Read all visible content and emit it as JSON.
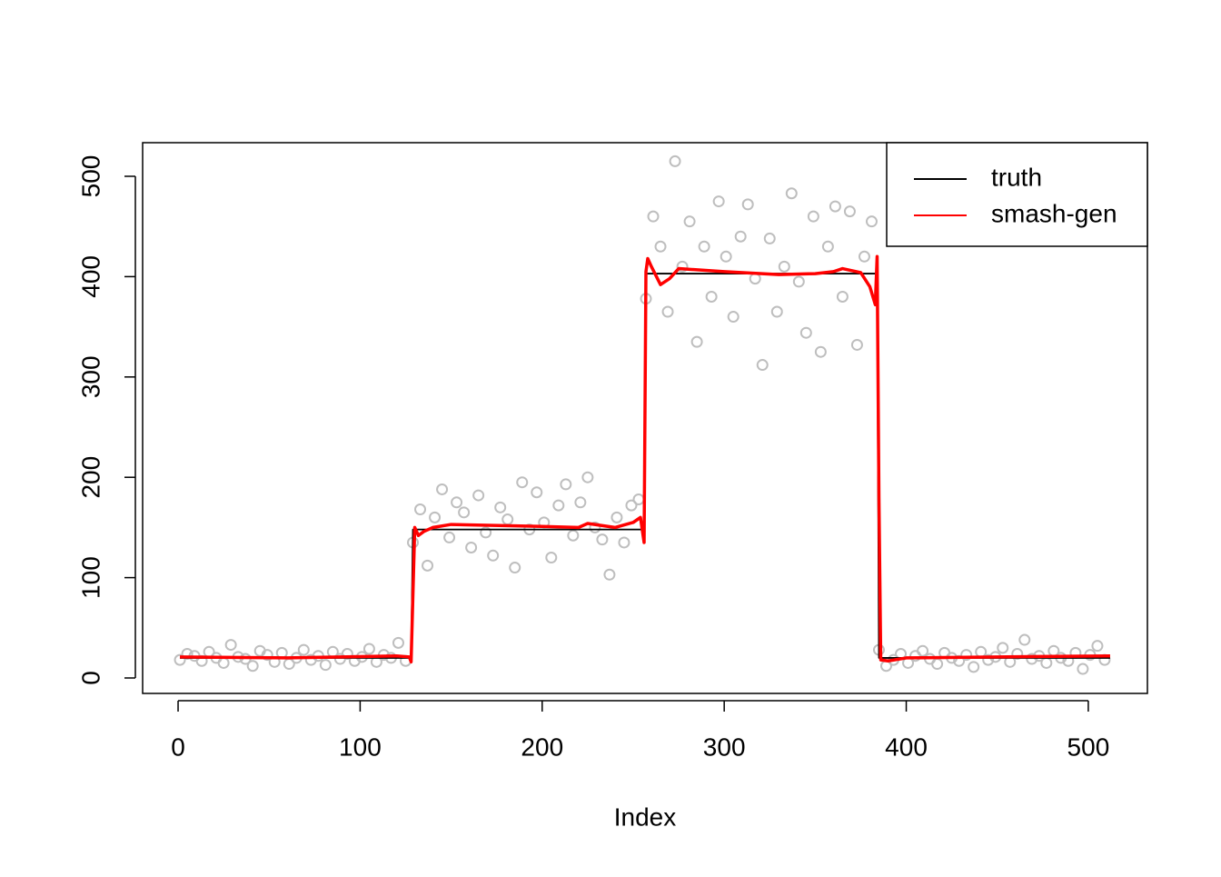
{
  "chart_data": {
    "type": "scatter",
    "xlabel": "Index",
    "xlim": [
      -19.48,
      532.48
    ],
    "ylim": [
      -15.4,
      533.5
    ],
    "xticks": [
      0,
      100,
      200,
      300,
      400,
      500
    ],
    "yticks": [
      0,
      100,
      200,
      300,
      400,
      500
    ],
    "legend": "topright",
    "points": {
      "color": "#bebebe",
      "x": [
        1,
        5,
        9,
        13,
        17,
        21,
        25,
        29,
        33,
        37,
        41,
        45,
        49,
        53,
        57,
        61,
        65,
        69,
        73,
        77,
        81,
        85,
        89,
        93,
        97,
        101,
        105,
        109,
        113,
        117,
        121,
        125,
        129,
        133,
        137,
        141,
        145,
        149,
        153,
        157,
        161,
        165,
        169,
        173,
        177,
        181,
        185,
        189,
        193,
        197,
        201,
        205,
        209,
        213,
        217,
        221,
        225,
        229,
        233,
        237,
        241,
        245,
        249,
        253,
        257,
        261,
        265,
        269,
        273,
        277,
        281,
        285,
        289,
        293,
        297,
        301,
        305,
        309,
        313,
        317,
        321,
        325,
        329,
        333,
        337,
        341,
        345,
        349,
        353,
        357,
        361,
        365,
        369,
        373,
        377,
        381,
        385,
        389,
        393,
        397,
        401,
        405,
        409,
        413,
        417,
        421,
        425,
        429,
        433,
        437,
        441,
        445,
        449,
        453,
        457,
        461,
        465,
        469,
        473,
        477,
        481,
        485,
        489,
        493,
        497,
        501,
        505,
        509
      ],
      "values": [
        18,
        24,
        22,
        17,
        26,
        20,
        15,
        33,
        21,
        19,
        12,
        27,
        23,
        16,
        25,
        14,
        20,
        28,
        18,
        22,
        13,
        26,
        19,
        24,
        17,
        21,
        29,
        16,
        23,
        20,
        35,
        17,
        135,
        168,
        112,
        160,
        188,
        140,
        175,
        165,
        130,
        182,
        145,
        122,
        170,
        158,
        110,
        195,
        148,
        185,
        155,
        120,
        172,
        193,
        142,
        175,
        200,
        150,
        138,
        103,
        160,
        135,
        172,
        178,
        378,
        460,
        430,
        365,
        515,
        410,
        455,
        335,
        430,
        380,
        475,
        420,
        360,
        440,
        472,
        398,
        312,
        438,
        365,
        410,
        483,
        395,
        344,
        460,
        325,
        430,
        470,
        380,
        465,
        332,
        420,
        455,
        28,
        12,
        18,
        24,
        15,
        22,
        27,
        19,
        14,
        25,
        20,
        17,
        23,
        11,
        26,
        18,
        21,
        30,
        16,
        24,
        38,
        19,
        22,
        15,
        27,
        20,
        17,
        25,
        9,
        23,
        32,
        18
      ]
    },
    "series": [
      {
        "name": "truth",
        "color": "#000000",
        "x": [
          1,
          128,
          129,
          256,
          257,
          384,
          385,
          512
        ],
        "values": [
          20,
          20,
          148,
          148,
          403,
          403,
          20,
          20
        ]
      },
      {
        "name": "smash-gen",
        "color": "#ff0000",
        "x": [
          1,
          60,
          120,
          127,
          128,
          130,
          132,
          135,
          140,
          150,
          200,
          220,
          225,
          240,
          250,
          254,
          256,
          257,
          258,
          260,
          265,
          270,
          275,
          300,
          330,
          350,
          360,
          365,
          375,
          380,
          383,
          384,
          385,
          386,
          390,
          400,
          450,
          512
        ],
        "values": [
          21,
          20,
          22,
          21,
          16,
          150,
          142,
          146,
          150,
          153,
          151,
          150,
          154,
          150,
          155,
          160,
          135,
          405,
          418,
          410,
          392,
          398,
          408,
          405,
          402,
          403,
          405,
          408,
          404,
          390,
          372,
          420,
          180,
          18,
          17,
          20,
          21,
          22
        ]
      }
    ]
  }
}
